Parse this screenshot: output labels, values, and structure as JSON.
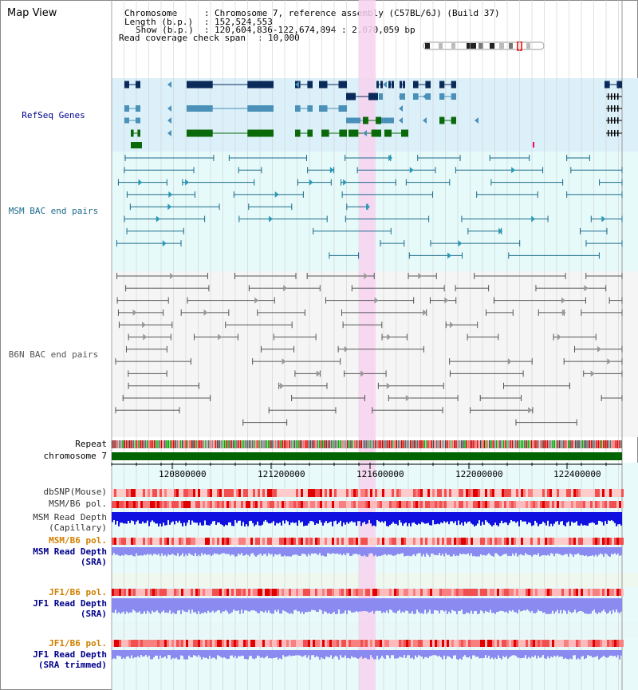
{
  "page_title": "Map View",
  "header": {
    "chromosome_label": "Chromosome",
    "chromosome_value": "Chromosome 7, reference assembly (C57BL/6J) (Build 37)",
    "length_label": "Length (b.p.)",
    "length_value": "152,524,553",
    "show_label": "Show (b.p.)",
    "show_value": "120,604,836-122,674,894 : 2,070,059 bp",
    "coverage_label": "Read coverage check span",
    "coverage_value": "10,000"
  },
  "tracks": {
    "refseq": "RefSeq Genes",
    "msm_bac": "MSM BAC end pairs",
    "b6n_bac": "B6N BAC end pairs",
    "repeat": "Repeat",
    "chromosome": "chromosome 7",
    "dbsnp": "dbSNP(Mouse)",
    "msm_b6_pol_1": "MSM/B6 pol.",
    "msm_depth_cap_1": "MSM Read Depth",
    "msm_depth_cap_2": "(Capillary)",
    "msm_b6_pol_2": "MSM/B6 pol.",
    "msm_depth_sra_1": "MSM Read Depth",
    "msm_depth_sra_2": "(SRA)",
    "jf1_pol_1": "JF1/B6 pol.",
    "jf1_depth_sra_1": "JF1 Read Depth",
    "jf1_depth_sra_2": "(SRA)",
    "jf1_pol_2": "JF1/B6 pol.",
    "jf1_depth_trim_1": "JF1 Read Depth",
    "jf1_depth_trim_2": "(SRA trimmed)"
  },
  "axis": {
    "ticks": [
      "120800000",
      "121200000",
      "121600000",
      "122000000",
      "122400000"
    ]
  },
  "colors": {
    "refseq_bg": "#dcf0fa",
    "msm_bg": "#e6fafa",
    "b6n_bg": "#f5f5f5",
    "highlight": "#f7d2ee",
    "gene_dark": "#0a2a5a",
    "gene_mid": "#4a90b8",
    "gene_green": "#0a6a0a",
    "msm_line": "#1a6a8a",
    "b6n_line": "#555555",
    "chrom_bar": "#006400",
    "depth_blue": "#1010e0",
    "depth_light": "#8a8af0",
    "label_blue": "#00008b",
    "label_orange": "#d08000"
  }
}
